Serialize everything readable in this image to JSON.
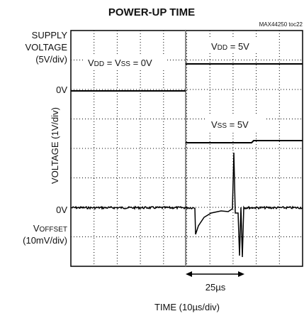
{
  "title": "POWER-UP TIME",
  "figure_id": "MAX44250 toc22",
  "supply_label": [
    "SUPPLY",
    "VOLTAGE",
    "(5V/div)"
  ],
  "supply_zero": "0V",
  "y_label": "VOLTAGE (1V/div)",
  "offset_zero": "0V",
  "offset_label": {
    "symbol": "V",
    "sub": "OFFSET",
    "scale": "(10mV/div)"
  },
  "annotations": [
    {
      "parts": [
        "V",
        "DD",
        " = V",
        "SS",
        " = 0V"
      ]
    },
    {
      "parts": [
        "V",
        "DD",
        " = 5V"
      ]
    },
    {
      "parts": [
        "V",
        "SS",
        " = 5V"
      ]
    }
  ],
  "time_marker": "25µs",
  "x_label": "TIME (10µs/div)"
}
